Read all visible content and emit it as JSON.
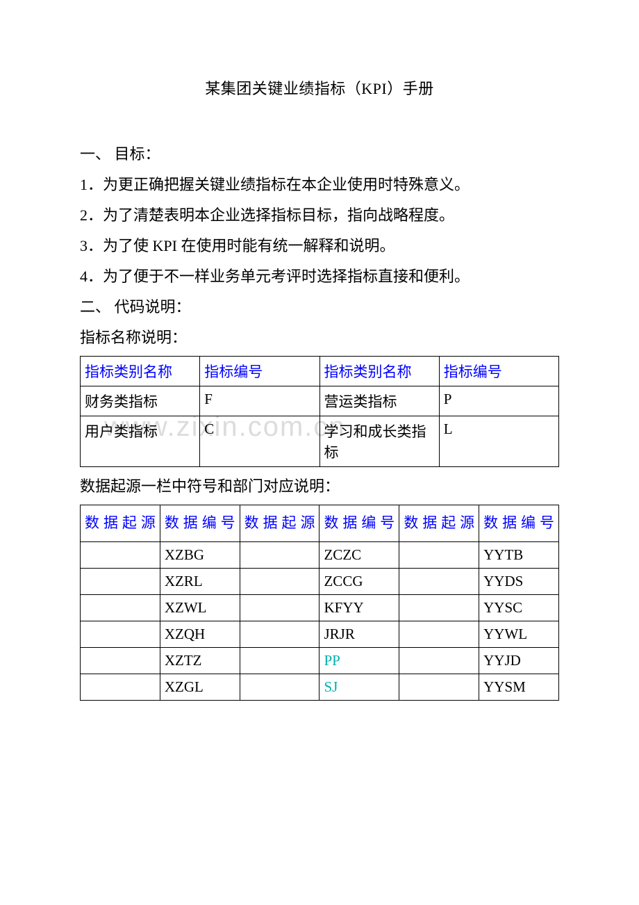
{
  "colors": {
    "text": "#000000",
    "header_blue": "#0000ff",
    "cyan": "#00b0b0",
    "watermark": "#dcdcdc",
    "border": "#000000",
    "background": "#ffffff"
  },
  "fonts": {
    "body_family": "SimSun, 宋体, serif",
    "title_size_pt": 16,
    "body_size_pt": 16,
    "table_size_pt": 15
  },
  "title": "某集团关键业绩指标（KPI）手册",
  "section1": {
    "heading": "一、 目标：",
    "items": [
      "1．为更正确把握关键业绩指标在本企业使用时特殊意义。",
      "2．为了清楚表明本企业选择指标目标，指向战略程度。",
      "3．为了使 KPI 在使用时能有统一解释和说明。",
      "4．为了便于不一样业务单元考评时选择指标直接和便利。"
    ]
  },
  "section2": {
    "heading": "二、 代码说明：",
    "sub1_label": "指标名称说明：",
    "table1": {
      "headers": [
        "指标类别名称",
        "指标编号",
        "指标类别名称",
        "指标编号"
      ],
      "rows": [
        [
          "财务类指标",
          "F",
          "营运类指标",
          "P"
        ],
        [
          "用户类指标",
          "C",
          "学习和成长类指标",
          "L"
        ]
      ]
    },
    "sub2_label": "数据起源一栏中符号和部门对应说明：",
    "table2": {
      "headers": [
        "数据起源",
        "数据编号",
        "数据起源",
        "数据编号",
        "数据起源",
        "数据编号"
      ],
      "rows": [
        {
          "cells": [
            "",
            "XZBG",
            "",
            "ZCZC",
            "",
            "YYTB"
          ],
          "cyan": []
        },
        {
          "cells": [
            "",
            "XZRL",
            "",
            "ZCCG",
            "",
            "YYDS"
          ],
          "cyan": []
        },
        {
          "cells": [
            "",
            "XZWL",
            "",
            "KFYY",
            "",
            "YYSC"
          ],
          "cyan": []
        },
        {
          "cells": [
            "",
            "XZQH",
            "",
            "JRJR",
            "",
            "YYWL"
          ],
          "cyan": []
        },
        {
          "cells": [
            "",
            "XZTZ",
            "",
            "PP",
            "",
            "YYJD"
          ],
          "cyan": [
            3
          ]
        },
        {
          "cells": [
            "",
            "XZGL",
            "",
            "SJ",
            "",
            "YYSM"
          ],
          "cyan": [
            3
          ]
        }
      ]
    }
  },
  "watermark": "www.zixin.com.cn"
}
